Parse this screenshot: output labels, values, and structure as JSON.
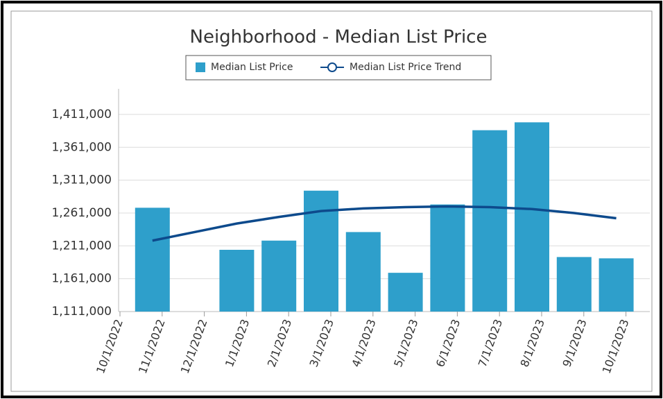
{
  "chart_data": {
    "type": "bar",
    "title": "Neighborhood - Median List Price",
    "categories": [
      "10/1/2022",
      "11/1/2022",
      "12/1/2022",
      "1/1/2023",
      "2/1/2023",
      "3/1/2023",
      "4/1/2023",
      "5/1/2023",
      "6/1/2023",
      "7/1/2023",
      "8/1/2023",
      "9/1/2023",
      "10/1/2023"
    ],
    "series": [
      {
        "name": "Median List Price",
        "type": "bar",
        "color": "#2e9fcb",
        "values": [
          null,
          1269000,
          null,
          1205000,
          1219000,
          1295000,
          1232000,
          1170000,
          1274000,
          1387000,
          1399000,
          1194000,
          1192000
        ]
      },
      {
        "name": "Median List Price Trend",
        "type": "line",
        "color": "#0d4a8c",
        "values": [
          null,
          1219000,
          1232000,
          1245000,
          1255000,
          1264000,
          1268000,
          1270000,
          1271000,
          1270000,
          1267000,
          1261000,
          1253000
        ]
      }
    ],
    "ylim": [
      1111000,
      1450000
    ],
    "yticks": [
      {
        "value": 1111000,
        "label": "1,111,000"
      },
      {
        "value": 1161000,
        "label": "1,161,000"
      },
      {
        "value": 1211000,
        "label": "1,211,000"
      },
      {
        "value": 1261000,
        "label": "1,261,000"
      },
      {
        "value": 1311000,
        "label": "1,311,000"
      },
      {
        "value": 1361000,
        "label": "1,361,000"
      },
      {
        "value": 1411000,
        "label": "1,411,000"
      }
    ],
    "grid": true,
    "legend": "top"
  }
}
